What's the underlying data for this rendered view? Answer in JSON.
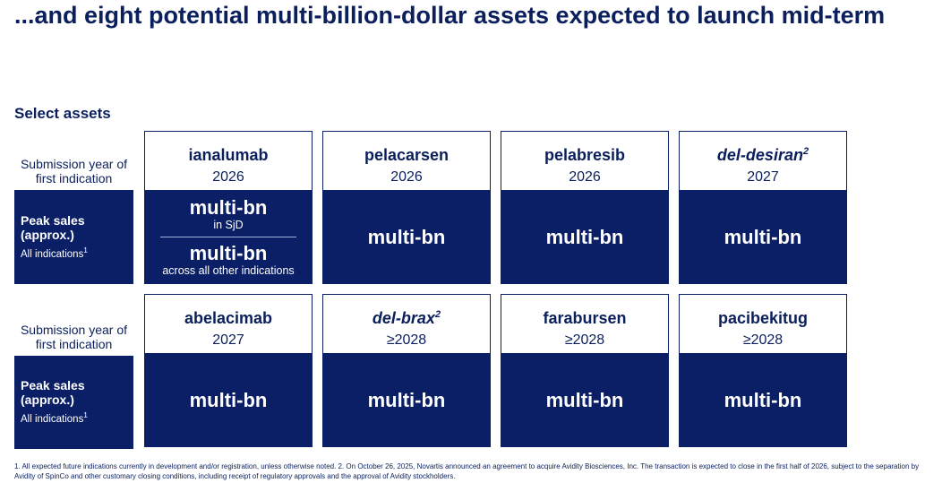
{
  "title": "...and eight potential multi-billion-dollar assets expected to launch mid-term",
  "subtitle": "Select assets",
  "row_label_submission": "Submission year of first indication",
  "peak_sales": {
    "title": "Peak sales (approx.)",
    "sub": "All indications",
    "sub_sup": "1"
  },
  "rows": [
    {
      "assets": [
        {
          "name": "ianalumab",
          "name_sup": "",
          "italic": false,
          "year": "2026",
          "split": true,
          "peak_main_1": "multi-bn",
          "peak_note_1": "in SjD",
          "peak_main_2": "multi-bn",
          "peak_note_2": "across all other indications"
        },
        {
          "name": "pelacarsen",
          "name_sup": "",
          "italic": false,
          "year": "2026",
          "peak": "multi-bn"
        },
        {
          "name": "pelabresib",
          "name_sup": "",
          "italic": false,
          "year": "2026",
          "peak": "multi-bn"
        },
        {
          "name": "del-desiran",
          "name_sup": "2",
          "italic": true,
          "year": "2027",
          "peak": "multi-bn"
        }
      ]
    },
    {
      "assets": [
        {
          "name": "abelacimab",
          "name_sup": "",
          "italic": false,
          "year": "2027",
          "peak": "multi-bn"
        },
        {
          "name": "del-brax",
          "name_sup": "2",
          "italic": true,
          "year": "≥2028",
          "peak": "multi-bn"
        },
        {
          "name": "farabursen",
          "name_sup": "",
          "italic": false,
          "year": "≥2028",
          "peak": "multi-bn"
        },
        {
          "name": "pacibekitug",
          "name_sup": "",
          "italic": false,
          "year": "≥2028",
          "peak": "multi-bn"
        }
      ]
    }
  ],
  "footnote": "1. All expected future indications currently in development and/or registration, unless otherwise noted.    2. On October 26, 2025, Novartis announced an agreement to acquire Avidity Biosciences, Inc. The transaction is expected to close in the first half of 2026, subject to the separation by Avidity of SpinCo and other customary closing conditions, including receipt of regulatory approvals and the approval of Avidity stockholders.",
  "colors": {
    "navy": "#0b1f66",
    "text": "#0a1f5c"
  }
}
